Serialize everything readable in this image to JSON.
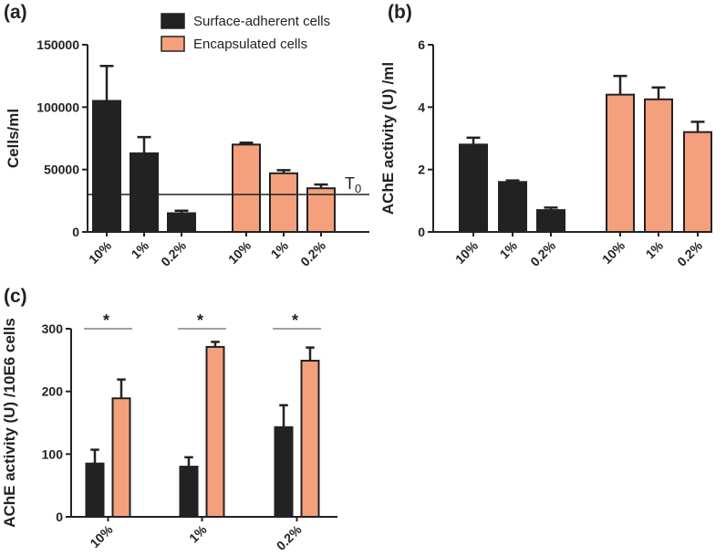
{
  "colors": {
    "surface": "#222222",
    "encapsulated": "#f4a07d",
    "axis": "#222222",
    "bar_outline": "#222222"
  },
  "legend": {
    "items": [
      {
        "label": "Surface-adherent cells",
        "color": "#222222"
      },
      {
        "label": "Encapsulated cells",
        "color": "#f4a07d"
      }
    ]
  },
  "chart_data": [
    {
      "id": "a",
      "panel_label": "(a)",
      "type": "bar",
      "ylabel": "Cells/ml",
      "ylim": [
        0,
        150000
      ],
      "yticks": [
        0,
        50000,
        100000,
        150000
      ],
      "ytick_labels": [
        "0",
        "50000",
        "100000",
        "150000"
      ],
      "categories": [
        "10%",
        "1%",
        "0.2%",
        "10%",
        "1%",
        "0.2%"
      ],
      "groups": [
        "surface",
        "surface",
        "surface",
        "encapsulated",
        "encapsulated",
        "encapsulated"
      ],
      "values": [
        105000,
        63000,
        15000,
        70000,
        47000,
        35000
      ],
      "errors": [
        28000,
        13000,
        2000,
        1500,
        2500,
        3000
      ],
      "reference_line": {
        "value": 30000,
        "label": "T0"
      }
    },
    {
      "id": "b",
      "panel_label": "(b)",
      "type": "bar",
      "ylabel": "AChE activity (U) /ml",
      "ylim": [
        0,
        6
      ],
      "yticks": [
        0,
        2,
        4,
        6
      ],
      "ytick_labels": [
        "0",
        "2",
        "4",
        "6"
      ],
      "categories": [
        "10%",
        "1%",
        "0.2%",
        "10%",
        "1%",
        "0.2%"
      ],
      "groups": [
        "surface",
        "surface",
        "surface",
        "encapsulated",
        "encapsulated",
        "encapsulated"
      ],
      "values": [
        2.8,
        1.6,
        0.7,
        4.4,
        4.25,
        3.2
      ],
      "errors": [
        0.22,
        0.05,
        0.08,
        0.6,
        0.38,
        0.33
      ]
    },
    {
      "id": "c",
      "panel_label": "(c)",
      "type": "bar",
      "ylabel": "AChE activity (U) /10E6 cells",
      "ylim": [
        0,
        300
      ],
      "yticks": [
        0,
        100,
        200,
        300
      ],
      "ytick_labels": [
        "0",
        "100",
        "200",
        "300"
      ],
      "categories": [
        "10%",
        "1%",
        "0.2%"
      ],
      "series": [
        {
          "name": "Surface-adherent cells",
          "group": "surface",
          "values": [
            85,
            80,
            143
          ],
          "errors": [
            22,
            15,
            35
          ]
        },
        {
          "name": "Encapsulated cells",
          "group": "encapsulated",
          "values": [
            189,
            271,
            249
          ],
          "errors": [
            30,
            8,
            21
          ]
        }
      ],
      "significance": [
        "*",
        "*",
        "*"
      ]
    }
  ]
}
